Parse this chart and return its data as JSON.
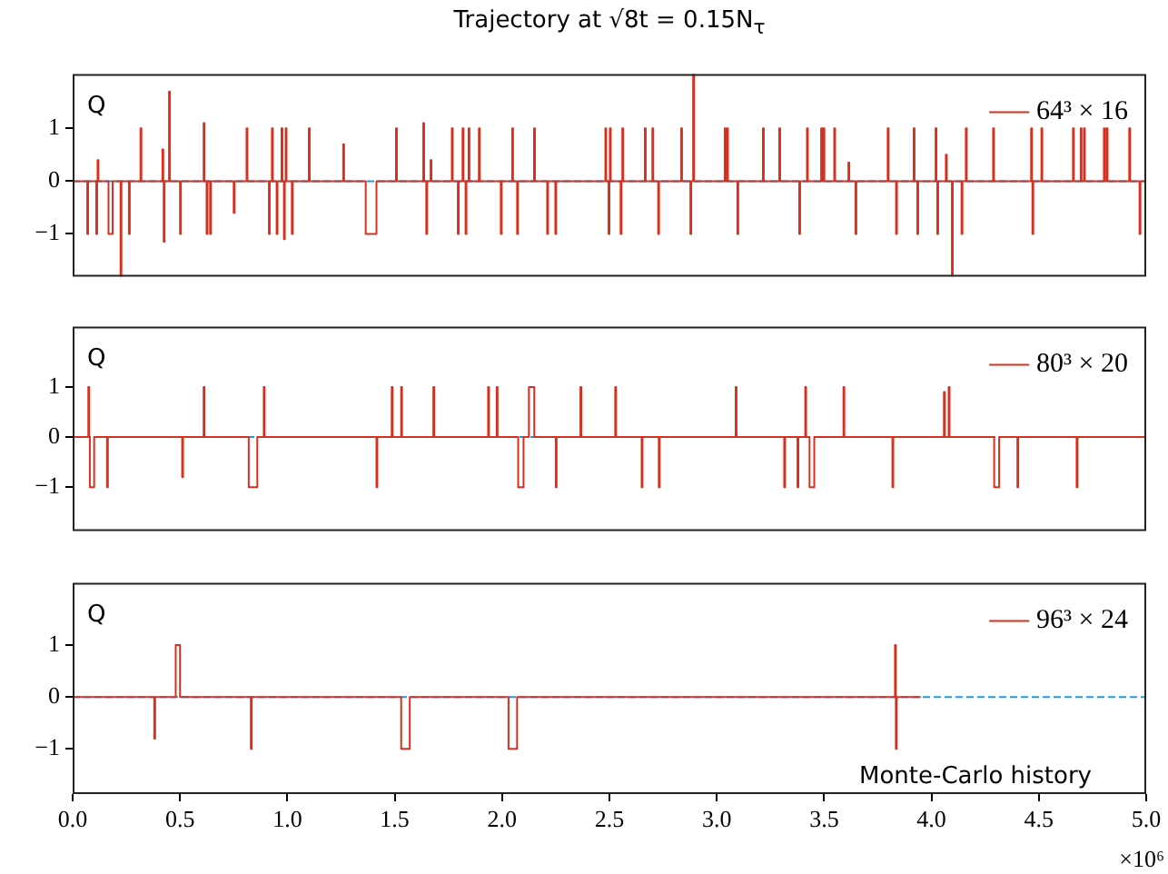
{
  "chart_data": [
    {
      "type": "step",
      "title": "Trajectory at √8t = 0.15N$_{τ}$",
      "ylabel": "Q",
      "xlim": [
        0,
        5
      ],
      "ylim": [
        -1.81,
        2.03
      ],
      "yticks": [
        -1,
        0,
        1
      ],
      "tick_labels": "y",
      "legend": "top right",
      "ref_lines": [
        {
          "axis": "y",
          "value": 0,
          "color": "#1f9bd7",
          "line_style": "dashed"
        }
      ],
      "series": [
        {
          "name": "64³ × 16",
          "color": "#d7301f",
          "x": [
            0,
            0.068,
            0.072,
            0.11,
            0.114,
            0.116,
            0.12,
            0.167,
            0.186,
            0.223,
            0.227,
            0.262,
            0.266,
            0.316,
            0.32,
            0.418,
            0.422,
            0.424,
            0.428,
            0.449,
            0.453,
            0.5,
            0.504,
            0.61,
            0.614,
            0.624,
            0.628,
            0.64,
            0.644,
            0.75,
            0.754,
            0.81,
            0.814,
            0.914,
            0.918,
            0.928,
            0.932,
            0.95,
            0.954,
            0.973,
            0.977,
            0.984,
            0.988,
            0.992,
            0.996,
            1.021,
            1.025,
            1.1,
            1.104,
            1.26,
            1.264,
            1.365,
            1.415,
            1.506,
            1.51,
            1.633,
            1.637,
            1.647,
            1.651,
            1.667,
            1.671,
            1.766,
            1.77,
            1.794,
            1.798,
            1.816,
            1.82,
            1.83,
            1.834,
            1.844,
            1.848,
            1.892,
            1.896,
            1.994,
            1.998,
            2.047,
            2.051,
            2.07,
            2.074,
            2.149,
            2.153,
            2.21,
            2.214,
            2.248,
            2.252,
            2.481,
            2.485,
            2.496,
            2.5,
            2.502,
            2.506,
            2.552,
            2.556,
            2.56,
            2.564,
            2.665,
            2.669,
            2.7,
            2.704,
            2.727,
            2.731,
            2.834,
            2.838,
            2.877,
            2.881,
            2.89,
            2.894,
            3.037,
            3.041,
            3.048,
            3.052,
            3.096,
            3.1,
            3.215,
            3.219,
            3.291,
            3.295,
            3.384,
            3.388,
            3.42,
            3.424,
            3.486,
            3.49,
            3.497,
            3.501,
            3.547,
            3.551,
            3.613,
            3.617,
            3.646,
            3.65,
            3.796,
            3.8,
            3.835,
            3.839,
            3.917,
            3.921,
            3.934,
            3.938,
            4.019,
            4.023,
            4.027,
            4.031,
            4.067,
            4.071,
            4.095,
            4.099,
            4.14,
            4.144,
            4.16,
            4.164,
            4.287,
            4.291,
            4.464,
            4.468,
            4.47,
            4.474,
            4.512,
            4.516,
            4.659,
            4.663,
            4.695,
            4.699,
            4.71,
            4.714,
            4.803,
            4.807,
            4.816,
            4.82,
            4.921,
            4.925,
            4.969,
            4.973,
            5.0
          ],
          "values": [
            0,
            -1,
            0,
            -1,
            0,
            0.4,
            0,
            -1,
            0,
            -1.8,
            0,
            -1,
            0,
            1,
            0,
            0.6,
            0,
            -1.15,
            0,
            1.7,
            0,
            -1,
            0,
            1.1,
            0,
            -1,
            0,
            -1,
            0,
            -0.6,
            0,
            1,
            0,
            -1,
            0,
            1,
            0,
            -1,
            0,
            1,
            0,
            -1.1,
            0,
            1,
            0,
            -1,
            0,
            1,
            0,
            0.7,
            0,
            -1,
            0,
            1,
            0,
            1.1,
            0,
            -1,
            0,
            0.4,
            0,
            1,
            0,
            -1,
            0,
            1,
            0,
            -1,
            0,
            1,
            0,
            1,
            0,
            -1,
            0,
            1,
            0,
            -1,
            0,
            1,
            0,
            -1,
            0,
            -1,
            0,
            1,
            0,
            -1,
            0,
            1,
            0,
            -1,
            0,
            1,
            0,
            1,
            0,
            1,
            0,
            -1,
            0,
            1,
            0,
            -1,
            0,
            2.03,
            0,
            1,
            0,
            1,
            0,
            -1,
            0,
            1,
            0,
            1,
            0,
            -1,
            0,
            1,
            0,
            1,
            0,
            1,
            0,
            1,
            0,
            0.35,
            0,
            -1,
            0,
            1,
            0,
            -1,
            0,
            1,
            0,
            -1,
            0,
            1,
            0,
            -1,
            0,
            0.5,
            0,
            -1.8,
            0,
            -1,
            0,
            1,
            0,
            1,
            0,
            1,
            0,
            -1,
            0,
            1,
            0,
            1,
            0,
            1,
            0,
            1,
            0,
            1,
            0,
            1,
            0,
            1,
            0,
            -1,
            0,
            0
          ]
        }
      ]
    },
    {
      "type": "step",
      "ylabel": "Q",
      "xlim": [
        0,
        5
      ],
      "ylim": [
        -1.87,
        2.2
      ],
      "yticks": [
        -1,
        0,
        1
      ],
      "tick_labels": "y",
      "legend": "top right",
      "ref_lines": [
        {
          "axis": "y",
          "value": 0,
          "color": "#1f9bd7",
          "line_style": "dashed"
        }
      ],
      "series": [
        {
          "name": "80³ × 20",
          "color": "#d7301f",
          "x": [
            0,
            0.073,
            0.077,
            0.08,
            0.1,
            0.16,
            0.164,
            0.51,
            0.514,
            0.61,
            0.614,
            0.82,
            0.86,
            0.89,
            0.894,
            1.415,
            1.419,
            1.486,
            1.49,
            1.53,
            1.534,
            1.68,
            1.684,
            1.935,
            1.939,
            1.975,
            1.979,
            2.075,
            2.1,
            2.125,
            2.15,
            2.25,
            2.254,
            2.365,
            2.369,
            2.527,
            2.531,
            2.65,
            2.654,
            2.73,
            2.734,
            3.088,
            3.092,
            3.314,
            3.318,
            3.376,
            3.38,
            3.412,
            3.416,
            3.432,
            3.454,
            3.59,
            3.594,
            3.818,
            3.822,
            4.058,
            4.062,
            4.08,
            4.084,
            4.292,
            4.315,
            4.4,
            4.404,
            4.676,
            4.68,
            5.0
          ],
          "values": [
            0,
            1,
            0,
            -1,
            0,
            -1,
            0,
            -0.8,
            0,
            1,
            0,
            -1,
            0,
            1,
            0,
            -1,
            0,
            1,
            0,
            1,
            0,
            1,
            0,
            1,
            0,
            1,
            0,
            -1,
            0,
            1,
            0,
            -1,
            0,
            1,
            0,
            1,
            0,
            -1,
            0,
            -1,
            0,
            1,
            0,
            -1,
            0,
            -1,
            0,
            1,
            0,
            -1,
            0,
            1,
            0,
            -1,
            0,
            0.9,
            0,
            1,
            0,
            -1,
            0,
            -1,
            0,
            -1,
            0,
            0
          ]
        }
      ]
    },
    {
      "type": "step",
      "ylabel": "Q",
      "xlabel": "Monte-Carlo history",
      "annotations": [
        "×10⁶"
      ],
      "xlim": [
        0,
        5
      ],
      "xticks": [
        {
          "value": 0,
          "label": "0.0"
        },
        0.5,
        {
          "value": 1,
          "label": "1.0"
        },
        1.5,
        {
          "value": 2,
          "label": "2.0"
        },
        2.5,
        {
          "value": 3,
          "label": "3.0"
        },
        3.5,
        {
          "value": 4,
          "label": "4.0"
        },
        4.5,
        {
          "value": 5,
          "label": "5.0"
        }
      ],
      "ylim": [
        -1.87,
        2.2
      ],
      "yticks": [
        -1,
        0,
        1
      ],
      "legend": "top right",
      "ref_lines": [
        {
          "axis": "y",
          "value": 0,
          "color": "#1f9bd7",
          "line_style": "dashed"
        }
      ],
      "series": [
        {
          "name": "96³ × 24",
          "color": "#d7301f",
          "x": [
            0,
            0.38,
            0.384,
            0.48,
            0.5,
            0.83,
            0.834,
            1.53,
            1.57,
            2.03,
            2.07,
            3.83,
            3.834,
            3.838,
            3.95
          ],
          "values": [
            0,
            -0.8,
            0,
            1,
            0,
            -1,
            0,
            -1,
            0,
            -1,
            0,
            1,
            -1,
            0,
            0
          ]
        }
      ]
    }
  ]
}
